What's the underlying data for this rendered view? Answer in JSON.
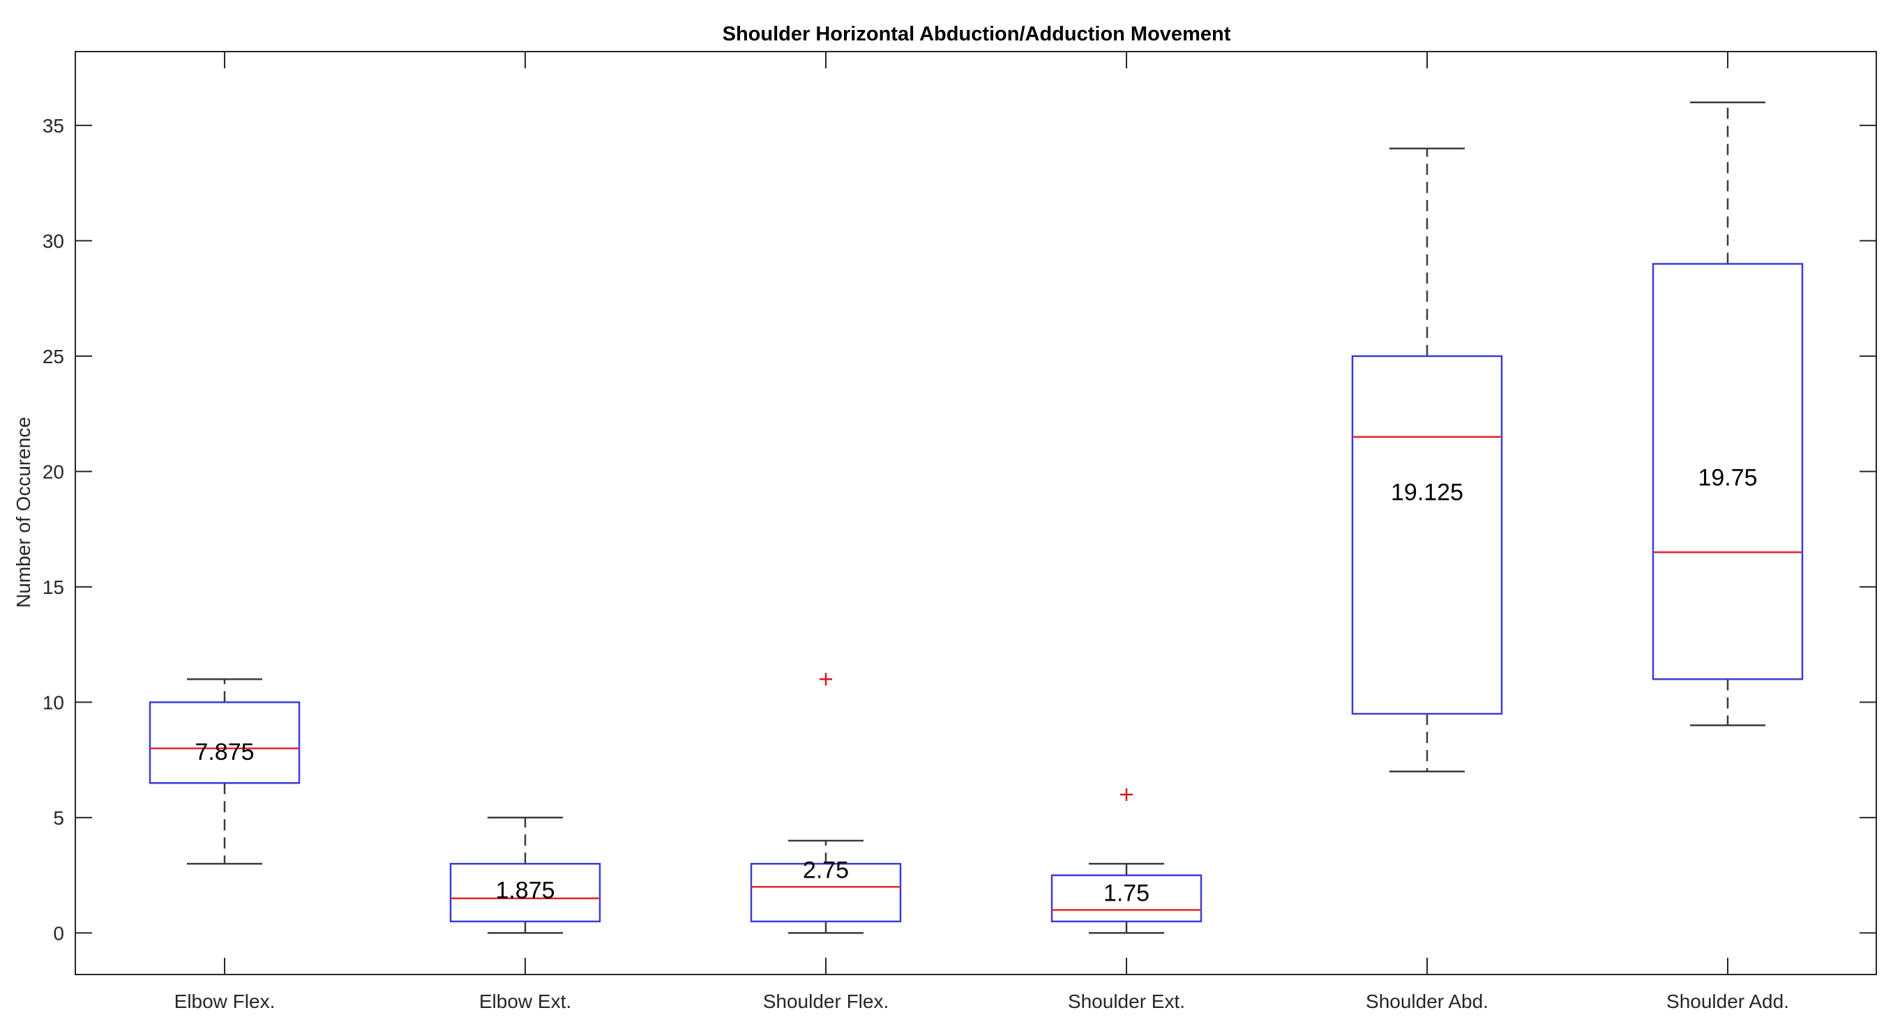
{
  "chart_data": {
    "type": "box",
    "title": "Shoulder Horizontal Abduction/Adduction Movement",
    "xlabel": "",
    "ylabel": "Number of Occurence",
    "ylim": [
      -1.8,
      38.2
    ],
    "yticks": [
      0,
      5,
      10,
      15,
      20,
      25,
      30,
      35
    ],
    "grid": false,
    "categories": [
      "Elbow Flex.",
      "Elbow Ext.",
      "Shoulder Flex.",
      "Shoulder Ext.",
      "Shoulder Abd.",
      "Shoulder Add."
    ],
    "boxes": [
      {
        "category": "Elbow Flex.",
        "whisker_low": 3,
        "q1": 6.5,
        "median": 8,
        "q3": 10,
        "whisker_high": 11,
        "outliers": [],
        "mean_label": "7.875",
        "mean": 7.875
      },
      {
        "category": "Elbow Ext.",
        "whisker_low": 0,
        "q1": 0.5,
        "median": 1.5,
        "q3": 3,
        "whisker_high": 5,
        "outliers": [],
        "mean_label": "1.875",
        "mean": 1.875
      },
      {
        "category": "Shoulder Flex.",
        "whisker_low": 0,
        "q1": 0.5,
        "median": 2,
        "q3": 3,
        "whisker_high": 4,
        "outliers": [
          11
        ],
        "mean_label": "2.75",
        "mean": 2.75
      },
      {
        "category": "Shoulder Ext.",
        "whisker_low": 0,
        "q1": 0.5,
        "median": 1,
        "q3": 2.5,
        "whisker_high": 3,
        "outliers": [
          6
        ],
        "mean_label": "1.75",
        "mean": 1.75
      },
      {
        "category": "Shoulder Abd.",
        "whisker_low": 7,
        "q1": 9.5,
        "median": 21.5,
        "q3": 25,
        "whisker_high": 34,
        "outliers": [],
        "mean_label": "19.125",
        "mean": 19.125
      },
      {
        "category": "Shoulder Add.",
        "whisker_low": 9,
        "q1": 11,
        "median": 16.5,
        "q3": 29,
        "whisker_high": 36,
        "outliers": [],
        "mean_label": "19.75",
        "mean": 19.75
      }
    ],
    "colors": {
      "box": "#3b3bd6",
      "median": "#e0262b",
      "whisker": "#3a3a3a",
      "outlier": "#d01818",
      "axes": "#262626"
    }
  }
}
